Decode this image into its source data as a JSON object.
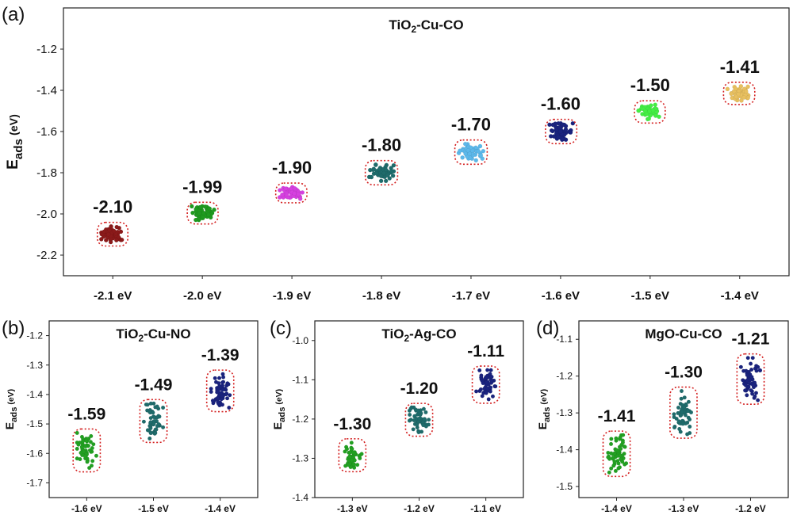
{
  "chart_data": [
    {
      "panel": "(a)",
      "type": "scatter",
      "title": "TiO2-Cu-CO",
      "xlabel": "",
      "ylabel": "Eads (eV)",
      "ylim": [
        -2.3,
        -1.0
      ],
      "yticks": [
        "-1.2",
        "-1.4",
        "-1.6",
        "-1.8",
        "-2.0",
        "-2.2"
      ],
      "categories": [
        "-2.1 eV",
        "-2.0 eV",
        "-1.9 eV",
        "-1.8 eV",
        "-1.7 eV",
        "-1.6 eV",
        "-1.5 eV",
        "-1.4 eV"
      ],
      "values": [
        -2.1,
        -1.99,
        -1.9,
        -1.8,
        -1.7,
        -1.6,
        -1.5,
        -1.41
      ],
      "labels": [
        "-2.10",
        "-1.99",
        "-1.90",
        "-1.80",
        "-1.70",
        "-1.60",
        "-1.50",
        "-1.41"
      ],
      "colors": [
        "#8b1a1a",
        "#1f9a1f",
        "#d640e0",
        "#1f6b6b",
        "#5db8ea",
        "#1a237e",
        "#44ee44",
        "#e8c060"
      ],
      "spread": 0.02
    },
    {
      "panel": "(b)",
      "type": "scatter",
      "title": "TiO2-Cu-NO",
      "xlabel": "",
      "ylabel": "Eads (eV)",
      "ylim": [
        -1.75,
        -1.15
      ],
      "yticks": [
        "-1.2",
        "-1.3",
        "-1.4",
        "-1.5",
        "-1.6",
        "-1.7"
      ],
      "categories": [
        "-1.6 eV",
        "-1.5 eV",
        "-1.4 eV"
      ],
      "values": [
        -1.59,
        -1.49,
        -1.39
      ],
      "labels": [
        "-1.59",
        "-1.49",
        "-1.39"
      ],
      "colors": [
        "#22a022",
        "#1f6b6b",
        "#1a237e"
      ],
      "spread": 0.03
    },
    {
      "panel": "(c)",
      "type": "scatter",
      "title": "TiO2-Ag-CO",
      "xlabel": "",
      "ylabel": "Eads (eV)",
      "ylim": [
        -1.4,
        -0.95
      ],
      "yticks": [
        "-1.0",
        "-1.1",
        "-1.2",
        "-1.3",
        "-1.4"
      ],
      "categories": [
        "-1.3 eV",
        "-1.2 eV",
        "-1.1 eV"
      ],
      "values": [
        -1.3,
        -1.2,
        -1.11
      ],
      "labels": [
        "-1.30",
        "-1.20",
        "-1.11"
      ],
      "colors": [
        "#22a022",
        "#1f6b6b",
        "#1a237e"
      ],
      "spread": 0.02
    },
    {
      "panel": "(d)",
      "type": "scatter",
      "title": "MgO-Cu-CO",
      "xlabel": "",
      "ylabel": "Eads (eV)",
      "ylim": [
        -1.53,
        -1.05
      ],
      "yticks": [
        "-1.1",
        "-1.2",
        "-1.3",
        "-1.4",
        "-1.5"
      ],
      "categories": [
        "-1.4 eV",
        "-1.3 eV",
        "-1.2 eV"
      ],
      "values": [
        -1.41,
        -1.3,
        -1.21
      ],
      "labels": [
        "-1.41",
        "-1.30",
        "-1.21"
      ],
      "colors": [
        "#22a022",
        "#1f6b6b",
        "#1a237e"
      ],
      "spread": 0.03
    }
  ]
}
